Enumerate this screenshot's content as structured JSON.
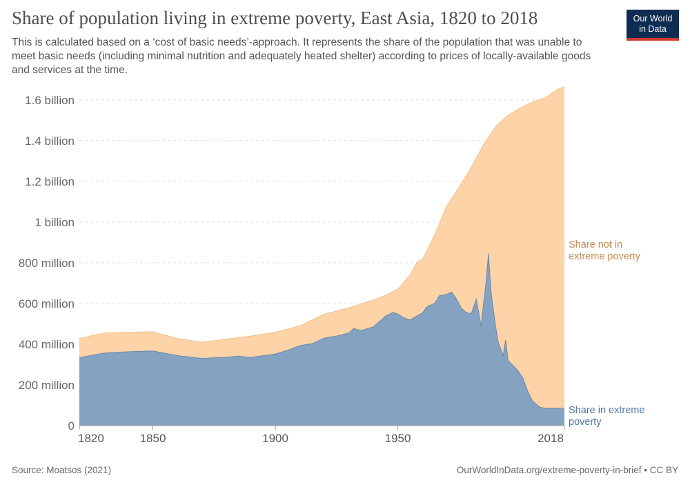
{
  "header": {
    "title": "Share of population living in extreme poverty, East Asia, 1820 to 2018",
    "subtitle": "This is calculated based on a ‘cost of basic needs’-approach. It represents the share of the population that was unable to meet basic needs (including minimal nutrition and adequately heated shelter) according to prices of locally-available goods and services at the time.",
    "logo_line1": "Our World",
    "logo_line2": "in Data"
  },
  "footer": {
    "source": "Source: Moatsos (2021)",
    "credit": "OurWorldInData.org/extreme-poverty-in-brief • CC BY"
  },
  "colors": {
    "poverty": "#84a2c2",
    "poverty_line": "#6a88ab",
    "not_poverty": "#fed3a8",
    "not_poverty_line": "#f1c089",
    "poverty_label": "#4a74a8",
    "not_poverty_label": "#c5894f",
    "logo_bg": "#0f2d52",
    "logo_bar": "#cf3b33"
  },
  "chart_data": {
    "type": "area",
    "stacked": true,
    "title": "Share of population living in extreme poverty, East Asia, 1820 to 2018",
    "xlim": [
      1820,
      2018
    ],
    "ylim": [
      0,
      1650000000
    ],
    "x_ticks": [
      "1820",
      "1850",
      "1900",
      "1950",
      "2018"
    ],
    "x_tick_values": [
      1820,
      1850,
      1900,
      1950,
      2018
    ],
    "y_ticks": [
      "0",
      "200 million",
      "400 million",
      "600 million",
      "800 million",
      "1 billion",
      "1.2 billion",
      "1.4 billion",
      "1.6 billion"
    ],
    "y_tick_values": [
      0,
      200000000,
      400000000,
      600000000,
      800000000,
      1000000000,
      1200000000,
      1400000000,
      1600000000
    ],
    "grid": true,
    "legend": "inline-right",
    "series": [
      {
        "name": "Share in extreme poverty",
        "label_lines": [
          "Share in extreme",
          "poverty"
        ],
        "points": [
          [
            1820,
            334000000
          ],
          [
            1830,
            356000000
          ],
          [
            1840,
            363000000
          ],
          [
            1850,
            367000000
          ],
          [
            1860,
            344000000
          ],
          [
            1870,
            330000000
          ],
          [
            1880,
            336000000
          ],
          [
            1885,
            341000000
          ],
          [
            1890,
            335000000
          ],
          [
            1900,
            352000000
          ],
          [
            1905,
            370000000
          ],
          [
            1910,
            393000000
          ],
          [
            1915,
            403000000
          ],
          [
            1920,
            430000000
          ],
          [
            1925,
            440000000
          ],
          [
            1930,
            455000000
          ],
          [
            1932,
            477000000
          ],
          [
            1935,
            467000000
          ],
          [
            1940,
            485000000
          ],
          [
            1945,
            538000000
          ],
          [
            1948,
            556000000
          ],
          [
            1950,
            548000000
          ],
          [
            1952,
            532000000
          ],
          [
            1955,
            518000000
          ],
          [
            1958,
            540000000
          ],
          [
            1960,
            553000000
          ],
          [
            1962,
            585000000
          ],
          [
            1965,
            600000000
          ],
          [
            1967,
            638000000
          ],
          [
            1970,
            645000000
          ],
          [
            1972,
            656000000
          ],
          [
            1974,
            620000000
          ],
          [
            1976,
            575000000
          ],
          [
            1978,
            555000000
          ],
          [
            1980,
            550000000
          ],
          [
            1982,
            620000000
          ],
          [
            1984,
            490000000
          ],
          [
            1985,
            600000000
          ],
          [
            1986,
            700000000
          ],
          [
            1987,
            845000000
          ],
          [
            1988,
            660000000
          ],
          [
            1989,
            570000000
          ],
          [
            1990,
            480000000
          ],
          [
            1991,
            410000000
          ],
          [
            1993,
            345000000
          ],
          [
            1994,
            420000000
          ],
          [
            1995,
            320000000
          ],
          [
            1997,
            295000000
          ],
          [
            1999,
            270000000
          ],
          [
            2001,
            235000000
          ],
          [
            2003,
            170000000
          ],
          [
            2005,
            120000000
          ],
          [
            2008,
            90000000
          ],
          [
            2010,
            85000000
          ],
          [
            2015,
            85000000
          ],
          [
            2018,
            85000000
          ]
        ]
      },
      {
        "name": "Share not in extreme poverty",
        "label_lines": [
          "Share not in",
          "extreme poverty"
        ],
        "total_points": [
          [
            1820,
            428000000
          ],
          [
            1830,
            455000000
          ],
          [
            1840,
            458000000
          ],
          [
            1850,
            461000000
          ],
          [
            1860,
            428000000
          ],
          [
            1870,
            410000000
          ],
          [
            1880,
            425000000
          ],
          [
            1890,
            440000000
          ],
          [
            1900,
            458000000
          ],
          [
            1910,
            490000000
          ],
          [
            1920,
            548000000
          ],
          [
            1930,
            578000000
          ],
          [
            1940,
            617000000
          ],
          [
            1945,
            640000000
          ],
          [
            1950,
            670000000
          ],
          [
            1955,
            740000000
          ],
          [
            1958,
            806000000
          ],
          [
            1960,
            815000000
          ],
          [
            1965,
            935000000
          ],
          [
            1970,
            1080000000
          ],
          [
            1975,
            1170000000
          ],
          [
            1980,
            1270000000
          ],
          [
            1985,
            1380000000
          ],
          [
            1990,
            1470000000
          ],
          [
            1995,
            1525000000
          ],
          [
            2000,
            1560000000
          ],
          [
            2005,
            1590000000
          ],
          [
            2010,
            1610000000
          ],
          [
            2012,
            1625000000
          ],
          [
            2015,
            1650000000
          ],
          [
            2018,
            1665000000
          ]
        ]
      }
    ]
  }
}
